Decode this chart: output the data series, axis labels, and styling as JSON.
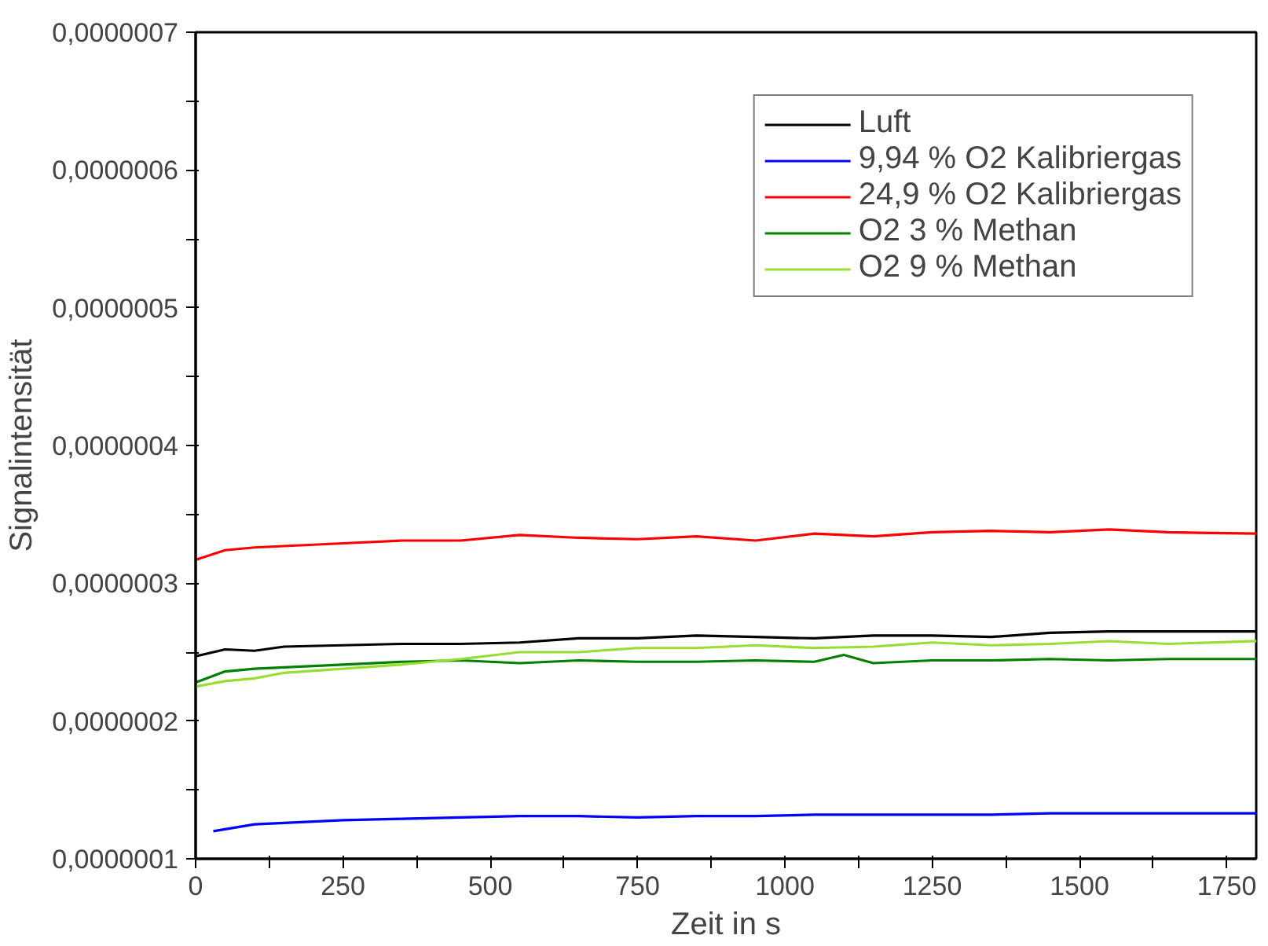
{
  "chart_data": {
    "type": "line",
    "xlabel": "Zeit in s",
    "ylabel": "Signalintensität",
    "xlim": [
      0,
      1800
    ],
    "xticks": [
      0,
      {
        "value": 125,
        "label": null
      },
      250,
      {
        "value": 375,
        "label": null
      },
      500,
      {
        "value": 625,
        "label": null
      },
      750,
      {
        "value": 875,
        "label": null
      },
      1000,
      {
        "value": 1125,
        "label": null
      },
      1250,
      {
        "value": 1375,
        "label": null
      },
      1500,
      {
        "value": 1625,
        "label": null
      },
      1750
    ],
    "ylim": [
      1e-07,
      7e-07
    ],
    "yticks": [
      {
        "value": 1e-07,
        "label": "0,0000001"
      },
      {
        "value": 1.5e-07,
        "label": null
      },
      {
        "value": 2e-07,
        "label": "0,0000002"
      },
      {
        "value": 2.5e-07,
        "label": null
      },
      {
        "value": 3e-07,
        "label": "0,0000003"
      },
      {
        "value": 3.5e-07,
        "label": null
      },
      {
        "value": 4e-07,
        "label": "0,0000004"
      },
      {
        "value": 4.5e-07,
        "label": null
      },
      {
        "value": 5e-07,
        "label": "0,0000005"
      },
      {
        "value": 5.5e-07,
        "label": null
      },
      {
        "value": 6e-07,
        "label": "0,0000006"
      },
      {
        "value": 6.5e-07,
        "label": null
      },
      {
        "value": 7e-07,
        "label": "0,0000007"
      }
    ],
    "grid": false,
    "legend": "top right",
    "line_style": "solid",
    "series": [
      {
        "name": "Luft",
        "color": "#000000",
        "x": [
          0,
          50,
          100,
          150,
          250,
          350,
          450,
          550,
          650,
          750,
          850,
          950,
          1050,
          1150,
          1250,
          1350,
          1450,
          1550,
          1650,
          1800
        ],
        "values": [
          2.47e-07,
          2.52e-07,
          2.51e-07,
          2.54e-07,
          2.55e-07,
          2.56e-07,
          2.56e-07,
          2.57e-07,
          2.6e-07,
          2.6e-07,
          2.62e-07,
          2.61e-07,
          2.6e-07,
          2.62e-07,
          2.62e-07,
          2.61e-07,
          2.64e-07,
          2.65e-07,
          2.65e-07,
          2.65e-07
        ]
      },
      {
        "name": "9,94 % O2 Kalibriergas",
        "color": "#0000ff",
        "x": [
          30,
          100,
          150,
          250,
          350,
          450,
          550,
          650,
          750,
          850,
          950,
          1050,
          1150,
          1250,
          1350,
          1450,
          1550,
          1650,
          1800
        ],
        "values": [
          1.2e-07,
          1.25e-07,
          1.26e-07,
          1.28e-07,
          1.29e-07,
          1.3e-07,
          1.31e-07,
          1.31e-07,
          1.3e-07,
          1.31e-07,
          1.31e-07,
          1.32e-07,
          1.32e-07,
          1.32e-07,
          1.32e-07,
          1.33e-07,
          1.33e-07,
          1.33e-07,
          1.33e-07
        ]
      },
      {
        "name": "24,9 % O2 Kalibriergas",
        "color": "#ff0000",
        "x": [
          0,
          50,
          100,
          150,
          250,
          350,
          450,
          550,
          650,
          750,
          850,
          950,
          1050,
          1150,
          1250,
          1350,
          1450,
          1550,
          1650,
          1800
        ],
        "values": [
          3.17e-07,
          3.24e-07,
          3.26e-07,
          3.27e-07,
          3.29e-07,
          3.31e-07,
          3.31e-07,
          3.35e-07,
          3.33e-07,
          3.32e-07,
          3.34e-07,
          3.31e-07,
          3.36e-07,
          3.34e-07,
          3.37e-07,
          3.38e-07,
          3.37e-07,
          3.39e-07,
          3.37e-07,
          3.36e-07
        ]
      },
      {
        "name": "O2 3 % Methan",
        "color": "#008000",
        "x": [
          0,
          50,
          100,
          150,
          250,
          350,
          450,
          550,
          650,
          750,
          850,
          950,
          1050,
          1100,
          1150,
          1250,
          1350,
          1450,
          1550,
          1650,
          1800
        ],
        "values": [
          2.28e-07,
          2.36e-07,
          2.38e-07,
          2.39e-07,
          2.41e-07,
          2.43e-07,
          2.44e-07,
          2.42e-07,
          2.44e-07,
          2.43e-07,
          2.43e-07,
          2.44e-07,
          2.43e-07,
          2.48e-07,
          2.42e-07,
          2.44e-07,
          2.44e-07,
          2.45e-07,
          2.44e-07,
          2.45e-07,
          2.45e-07
        ]
      },
      {
        "name": "O2 9 % Methan",
        "color": "#99dd33",
        "x": [
          0,
          50,
          100,
          150,
          250,
          350,
          450,
          550,
          650,
          750,
          850,
          950,
          1050,
          1150,
          1250,
          1350,
          1450,
          1550,
          1650,
          1800
        ],
        "values": [
          2.25e-07,
          2.29e-07,
          2.31e-07,
          2.35e-07,
          2.38e-07,
          2.41e-07,
          2.45e-07,
          2.5e-07,
          2.5e-07,
          2.53e-07,
          2.53e-07,
          2.55e-07,
          2.53e-07,
          2.54e-07,
          2.57e-07,
          2.55e-07,
          2.56e-07,
          2.58e-07,
          2.56e-07,
          2.58e-07
        ]
      }
    ]
  }
}
